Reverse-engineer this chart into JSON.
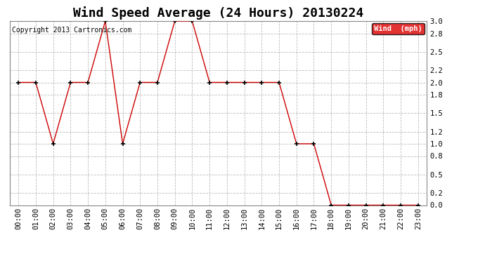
{
  "title": "Wind Speed Average (24 Hours) 20130224",
  "copyright_text": "Copyright 2013 Cartronics.com",
  "legend_label": "Wind  (mph)",
  "legend_bg": "#dd0000",
  "legend_text_color": "#ffffff",
  "x_labels": [
    "00:00",
    "01:00",
    "02:00",
    "03:00",
    "04:00",
    "05:00",
    "06:00",
    "07:00",
    "08:00",
    "09:00",
    "10:00",
    "11:00",
    "12:00",
    "13:00",
    "14:00",
    "15:00",
    "16:00",
    "17:00",
    "18:00",
    "19:00",
    "20:00",
    "21:00",
    "22:00",
    "23:00"
  ],
  "y_values": [
    2.0,
    2.0,
    1.0,
    2.0,
    2.0,
    3.0,
    1.0,
    2.0,
    2.0,
    3.0,
    3.0,
    2.0,
    2.0,
    2.0,
    2.0,
    2.0,
    1.0,
    1.0,
    0.0,
    0.0,
    0.0,
    0.0,
    0.0,
    0.0
  ],
  "line_color": "#cc0000",
  "marker_color": "#000000",
  "bg_color": "#ffffff",
  "plot_bg_color": "#ffffff",
  "grid_color": "#aaaaaa",
  "ylim": [
    0.0,
    3.0
  ],
  "yticks": [
    0.0,
    0.2,
    0.5,
    0.8,
    1.0,
    1.2,
    1.5,
    1.8,
    2.0,
    2.2,
    2.5,
    2.8,
    3.0
  ],
  "title_fontsize": 13,
  "axis_fontsize": 7.5,
  "copyright_fontsize": 7
}
